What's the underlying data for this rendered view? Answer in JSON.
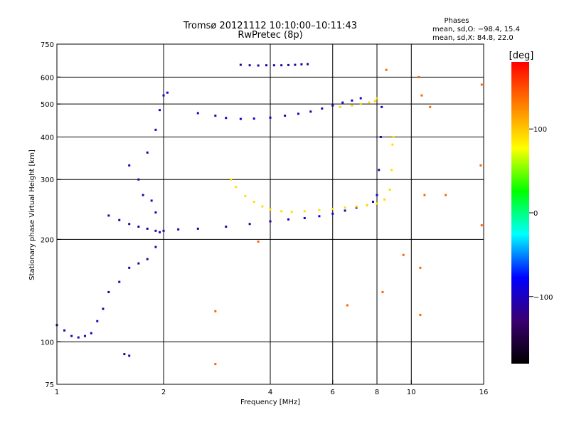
{
  "chart_data": {
    "type": "scatter",
    "title": "Tromsø 20121112 10:10:00–10:11:43",
    "subtitle": "RwPretec (8p)",
    "xlabel": "Frequency [MHz]",
    "ylabel": "Stationary phase Virtual Height [km]",
    "x_scale": "log",
    "y_scale": "log",
    "xlim": [
      1,
      16
    ],
    "ylim": [
      75,
      750
    ],
    "x_ticks": [
      {
        "value": 1,
        "label": "1"
      },
      {
        "value": 2,
        "label": "2"
      },
      {
        "value": 4,
        "label": "4"
      },
      {
        "value": 6,
        "label": "6"
      },
      {
        "value": 8,
        "label": "8"
      },
      {
        "value": 10,
        "label": "10"
      },
      {
        "value": 16,
        "label": "16"
      }
    ],
    "y_ticks": [
      {
        "value": 75,
        "label": "75"
      },
      {
        "value": 100,
        "label": "100"
      },
      {
        "value": 200,
        "label": "200"
      },
      {
        "value": 300,
        "label": "300"
      },
      {
        "value": 400,
        "label": "400"
      },
      {
        "value": 500,
        "label": "500"
      },
      {
        "value": 600,
        "label": "600"
      },
      {
        "value": 750,
        "label": "750"
      }
    ],
    "grid_x": [
      2,
      4,
      6,
      8,
      10
    ],
    "grid_y": [
      100,
      200,
      300,
      400,
      500,
      600
    ],
    "grid": true,
    "phases": {
      "heading": "Phases",
      "line_o": "mean, sd,O: −98.4, 15.4",
      "line_x": "mean, sd,X:  84.8, 22.0"
    },
    "colorbar": {
      "label": "[deg]",
      "min": -180,
      "max": 180,
      "ticks": [
        {
          "value": 100,
          "label": "100"
        },
        {
          "value": 0,
          "label": "0"
        },
        {
          "value": -100,
          "label": "−100"
        }
      ],
      "colors": [
        "#000000",
        "#3a0070",
        "#0000ff",
        "#00ffff",
        "#00ff00",
        "#ffff00",
        "#ff8000",
        "#ff0000"
      ]
    },
    "point_traces": [
      {
        "name": "O-trace low",
        "phase": -110,
        "points": [
          [
            1.0,
            112
          ],
          [
            1.05,
            108
          ],
          [
            1.1,
            104
          ],
          [
            1.15,
            103
          ],
          [
            1.2,
            104
          ],
          [
            1.25,
            106
          ],
          [
            1.3,
            115
          ],
          [
            1.35,
            125
          ],
          [
            1.4,
            140
          ],
          [
            1.5,
            150
          ],
          [
            1.6,
            165
          ],
          [
            1.7,
            170
          ],
          [
            1.8,
            175
          ],
          [
            1.9,
            190
          ],
          [
            1.95,
            210
          ]
        ]
      },
      {
        "name": "O-trace E spread",
        "phase": -105,
        "points": [
          [
            1.4,
            235
          ],
          [
            1.5,
            228
          ],
          [
            1.6,
            222
          ],
          [
            1.7,
            218
          ],
          [
            1.8,
            215
          ],
          [
            1.9,
            212
          ],
          [
            2.0,
            212
          ],
          [
            2.2,
            214
          ],
          [
            2.5,
            215
          ],
          [
            3.0,
            218
          ],
          [
            3.5,
            222
          ],
          [
            4.0,
            226
          ],
          [
            4.5,
            229
          ],
          [
            5.0,
            231
          ],
          [
            5.5,
            234
          ],
          [
            6.0,
            238
          ],
          [
            6.5,
            243
          ],
          [
            7.0,
            248
          ],
          [
            7.5,
            252
          ],
          [
            7.8,
            258
          ],
          [
            8.0,
            270
          ],
          [
            8.1,
            320
          ],
          [
            8.2,
            400
          ],
          [
            8.25,
            490
          ]
        ]
      },
      {
        "name": "O-trace cusp",
        "phase": -100,
        "points": [
          [
            1.6,
            330
          ],
          [
            1.7,
            300
          ],
          [
            1.8,
            360
          ],
          [
            1.9,
            420
          ],
          [
            1.95,
            480
          ],
          [
            2.0,
            530
          ],
          [
            2.05,
            540
          ],
          [
            1.85,
            260
          ],
          [
            1.75,
            270
          ],
          [
            1.9,
            240
          ]
        ]
      },
      {
        "name": "O-trace F upper",
        "phase": -100,
        "points": [
          [
            2.5,
            470
          ],
          [
            2.8,
            462
          ],
          [
            3.0,
            455
          ],
          [
            3.3,
            452
          ],
          [
            3.6,
            453
          ],
          [
            4.0,
            456
          ],
          [
            4.4,
            462
          ],
          [
            4.8,
            468
          ],
          [
            5.2,
            475
          ],
          [
            5.6,
            485
          ],
          [
            6.0,
            495
          ],
          [
            6.4,
            505
          ],
          [
            6.8,
            512
          ],
          [
            7.2,
            520
          ]
        ]
      },
      {
        "name": "X-trace",
        "phase": 90,
        "points": [
          [
            3.1,
            300
          ],
          [
            3.2,
            285
          ],
          [
            3.4,
            268
          ],
          [
            3.6,
            258
          ],
          [
            3.8,
            250
          ],
          [
            4.0,
            245
          ],
          [
            4.3,
            242
          ],
          [
            4.6,
            241
          ],
          [
            5.0,
            242
          ],
          [
            5.5,
            244
          ],
          [
            6.0,
            246
          ],
          [
            6.5,
            248
          ],
          [
            7.0,
            250
          ],
          [
            7.5,
            252
          ],
          [
            8.0,
            255
          ],
          [
            8.4,
            262
          ],
          [
            8.7,
            280
          ],
          [
            8.8,
            320
          ],
          [
            8.85,
            380
          ],
          [
            8.9,
            400
          ]
        ]
      },
      {
        "name": "X-trace upper",
        "phase": 95,
        "points": [
          [
            6.3,
            490
          ],
          [
            6.8,
            495
          ],
          [
            7.2,
            500
          ],
          [
            7.6,
            505
          ],
          [
            7.9,
            510
          ],
          [
            8.0,
            520
          ]
        ]
      },
      {
        "name": "Echo 640",
        "phase": -110,
        "points": [
          [
            3.3,
            652
          ],
          [
            3.5,
            650
          ],
          [
            3.7,
            649
          ],
          [
            3.9,
            650
          ],
          [
            4.1,
            650
          ],
          [
            4.3,
            650
          ],
          [
            4.5,
            651
          ],
          [
            4.7,
            652
          ],
          [
            4.9,
            654
          ],
          [
            5.1,
            655
          ]
        ]
      },
      {
        "name": "Echo 90",
        "phase": -105,
        "points": [
          [
            1.55,
            92
          ],
          [
            1.6,
            91
          ]
        ]
      },
      {
        "name": "Scatter",
        "phase": 140,
        "points": [
          [
            2.8,
            86
          ],
          [
            3.7,
            197
          ],
          [
            6.6,
            128
          ],
          [
            8.3,
            140
          ],
          [
            9.5,
            180
          ],
          [
            10.5,
            600
          ],
          [
            10.6,
            120
          ],
          [
            10.7,
            530
          ],
          [
            12.5,
            270
          ],
          [
            15.8,
            220
          ],
          [
            15.7,
            330
          ],
          [
            15.8,
            570
          ],
          [
            8.5,
            630
          ],
          [
            11.3,
            490
          ],
          [
            10.9,
            270
          ],
          [
            10.6,
            165
          ],
          [
            2.8,
            123
          ]
        ]
      }
    ]
  }
}
